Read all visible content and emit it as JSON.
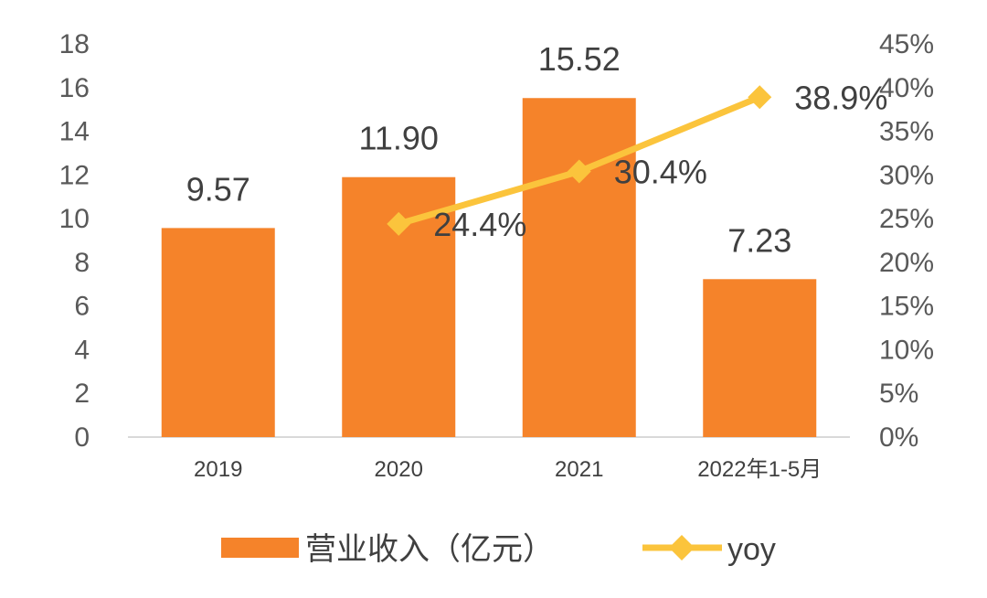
{
  "chart_data": {
    "type": "bar",
    "categories": [
      "2019",
      "2020",
      "2021",
      "2022年1-5月"
    ],
    "series": [
      {
        "name": "营业收入（亿元）",
        "type": "bar",
        "axis": "left",
        "values": [
          9.57,
          11.9,
          15.52,
          7.23
        ],
        "labels": [
          "9.57",
          "11.90",
          "15.52",
          "7.23"
        ],
        "color": "#F5832A"
      },
      {
        "name": "yoy",
        "type": "line",
        "axis": "right",
        "marker": "diamond",
        "values": [
          null,
          24.4,
          30.4,
          38.9
        ],
        "labels": [
          null,
          "24.4%",
          "30.4%",
          "38.9%"
        ],
        "color": "#FBC43C"
      }
    ],
    "y_left": {
      "ylim": [
        0,
        18
      ],
      "ticks": [
        "0",
        "2",
        "4",
        "6",
        "8",
        "10",
        "12",
        "14",
        "16",
        "18"
      ]
    },
    "y_right": {
      "ylim": [
        0,
        45
      ],
      "ticks": [
        "0%",
        "5%",
        "10%",
        "15%",
        "20%",
        "25%",
        "30%",
        "35%",
        "40%",
        "45%"
      ]
    },
    "grid": false,
    "legend_position": "bottom"
  }
}
